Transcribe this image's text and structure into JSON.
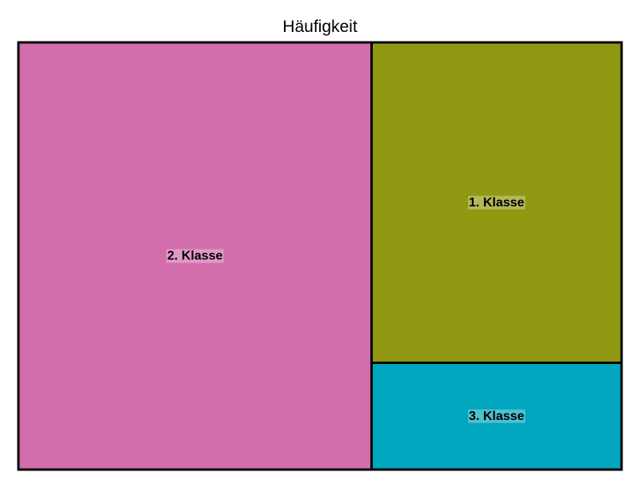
{
  "chart_data": {
    "type": "treemap",
    "title": "Häufigkeit",
    "tiles": [
      {
        "name": "2. Klasse",
        "value": 56.5,
        "color": "#D36EAD"
      },
      {
        "name": "1. Klasse",
        "value": 30.0,
        "color": "#919812"
      },
      {
        "name": "3. Klasse",
        "value": 10.0,
        "color": "#00A6BD"
      }
    ],
    "label_background": "#ffffff",
    "border_color": "#000000"
  }
}
